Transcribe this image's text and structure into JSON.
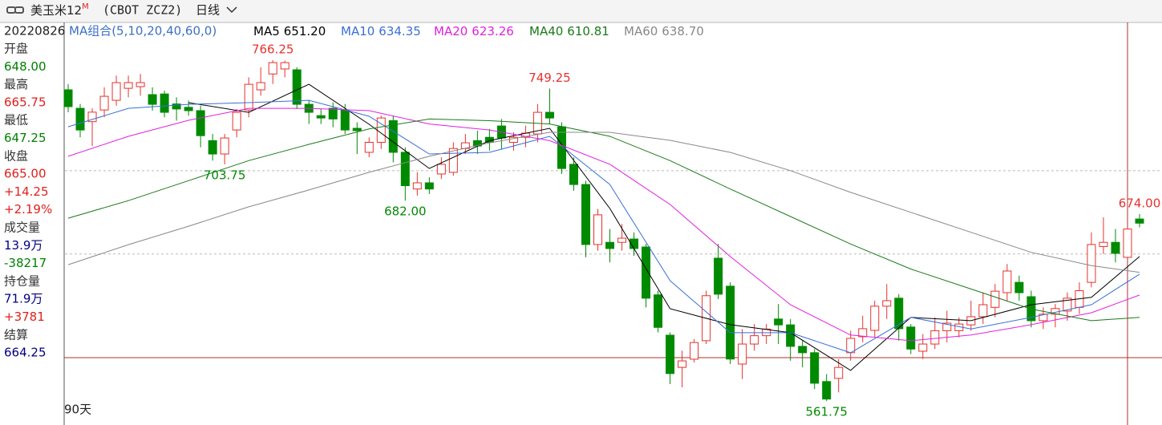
{
  "header": {
    "symbol": "美玉米12",
    "superscript": "M",
    "code": "(CBOT ZCZ2)",
    "period": "日线"
  },
  "info": {
    "date": "20220826",
    "items": [
      {
        "text": "开盘",
        "color": "#333333"
      },
      {
        "text": "648.00",
        "color": "#008000"
      },
      {
        "text": "最高",
        "color": "#333333"
      },
      {
        "text": "665.75",
        "color": "#e0201c"
      },
      {
        "text": "最低",
        "color": "#333333"
      },
      {
        "text": "647.25",
        "color": "#008000"
      },
      {
        "text": "收盘",
        "color": "#333333"
      },
      {
        "text": "665.00",
        "color": "#e0201c"
      },
      {
        "text": "+14.25",
        "color": "#e0201c"
      },
      {
        "text": "+2.19%",
        "color": "#e0201c"
      },
      {
        "text": "成交量",
        "color": "#333333"
      },
      {
        "text": "13.9万",
        "color": "#000080"
      },
      {
        "text": "-38217",
        "color": "#008000"
      },
      {
        "text": "持仓量",
        "color": "#333333"
      },
      {
        "text": "71.9万",
        "color": "#000080"
      },
      {
        "text": "+3781",
        "color": "#e0201c"
      },
      {
        "text": "结算",
        "color": "#333333"
      },
      {
        "text": "664.25",
        "color": "#000080"
      }
    ]
  },
  "chart_data": {
    "type": "candlestick",
    "ma_legend": "MA组合(5,10,20,40,60,0)",
    "span_label": "90天",
    "up_color": "#e5322d",
    "down_color": "#008a00",
    "ylim": [
      548.4,
      788.9
    ],
    "grid_levels": [
      650,
      700
    ],
    "open": [
      748.5,
      737.4,
      729.4,
      736.4,
      742.2,
      749.4,
      750.4,
      745.6,
      746,
      740,
      738,
      736,
      718,
      710,
      724.4,
      736.4,
      748.5,
      758,
      761,
      760.5,
      739.8,
      733,
      737.4,
      736.4,
      725.4,
      711,
      717,
      730,
      711,
      689,
      692.7,
      698,
      699,
      713.3,
      718,
      720,
      726.8,
      717,
      720,
      722,
      735,
      726.3,
      703.8,
      691.7,
      655.7,
      657,
      657,
      659,
      654.2,
      625.5,
      601.3,
      582,
      586.9,
      598,
      647.5,
      630.7,
      584,
      596,
      601,
      611,
      607.5,
      594.6,
      590.8,
      573.5,
      575.4,
      590.8,
      600.4,
      604.2,
      618.7,
      623.5,
      606.2,
      591.7,
      596,
      604,
      604,
      607.5,
      612.4,
      618,
      626.8,
      633,
      624.4,
      610,
      613.9,
      615.8,
      618,
      633,
      654.5,
      657,
      648,
      671
    ],
    "high": [
      751.9,
      740,
      737.4,
      750,
      757,
      757,
      758,
      750,
      748,
      744,
      742,
      739,
      722,
      722,
      737,
      756,
      762,
      766.25,
      766,
      762,
      742,
      737,
      741,
      740,
      729,
      720,
      733,
      733,
      714,
      699,
      696,
      708,
      717,
      722,
      724,
      725,
      731,
      723,
      727,
      740,
      749.25,
      729,
      708,
      694,
      677,
      665,
      668,
      663,
      656,
      628,
      603,
      592,
      599,
      628,
      656,
      633,
      605,
      608,
      608,
      620,
      611,
      598,
      593,
      578,
      587,
      604,
      613,
      622,
      632,
      626,
      608,
      602,
      612,
      616,
      612,
      622,
      627,
      632,
      644,
      637,
      628,
      618,
      620,
      627,
      633,
      663,
      672,
      665,
      665.75,
      674
    ],
    "low": [
      735,
      720,
      714.8,
      732,
      739,
      744,
      745,
      736,
      732,
      730,
      733,
      714,
      706,
      703.75,
      720,
      732,
      745,
      752,
      756,
      737,
      728,
      728,
      726,
      722,
      710,
      708,
      713,
      705,
      682,
      685,
      686,
      695,
      697,
      710,
      710,
      712,
      713,
      712,
      714,
      717,
      728,
      698,
      688,
      648,
      652,
      645,
      652,
      649,
      618,
      603,
      572,
      570,
      585,
      596,
      623,
      584,
      575,
      592,
      596,
      596,
      586,
      582,
      569,
      561.75,
      567,
      586,
      597,
      600,
      611,
      598,
      590,
      587,
      593,
      597,
      600,
      604,
      608,
      612,
      622,
      622,
      606,
      605,
      606,
      610,
      614,
      630,
      650,
      645,
      647.25,
      666
    ],
    "close": [
      738.4,
      724.4,
      735.1,
      744.6,
      752.8,
      752.8,
      752.8,
      739.8,
      735,
      737,
      736,
      721,
      710,
      719.6,
      735,
      751.8,
      752.8,
      764.8,
      764.8,
      739.8,
      735,
      731.6,
      731,
      724.4,
      724,
      717,
      731.6,
      711,
      691,
      692.7,
      689,
      703.8,
      713.3,
      716.7,
      714.8,
      717,
      719.6,
      720,
      722.5,
      735,
      731.6,
      701.3,
      691.7,
      655.7,
      673.5,
      653.3,
      659.5,
      653.3,
      623.5,
      606,
      578.3,
      585.9,
      596.9,
      625,
      625.9,
      587,
      596,
      601,
      605,
      607.5,
      594.6,
      590.8,
      572.5,
      563,
      582,
      599.4,
      605.2,
      618.7,
      622,
      605.2,
      593,
      596,
      604,
      608.5,
      608,
      612.4,
      619.6,
      627.7,
      639.8,
      626.8,
      610,
      613.9,
      617.3,
      623.5,
      628,
      655.7,
      657,
      650.4,
      665,
      668.5
    ],
    "ma_index": [
      0,
      5,
      10,
      15,
      20,
      25,
      30,
      35,
      40,
      45,
      50,
      55,
      60,
      65,
      70,
      75,
      80,
      85,
      89
    ],
    "series": [
      {
        "name": "MA5",
        "value_label": "651.20",
        "color": "#000000",
        "values": [
          null,
          null,
          740.8,
          735,
          751.8,
          727.8,
          701.3,
          718,
          725.4,
          677.3,
          617.2,
          607.6,
          602.8,
          580.2,
          612,
          610,
          619.6,
          624,
          648.5
        ]
      },
      {
        "name": "MA10",
        "value_label": "634.35",
        "color": "#3a6fd8",
        "values": [
          726.3,
          737.4,
          739.8,
          740.8,
          742.2,
          732.6,
          710,
          711,
          720.6,
          691.7,
          634,
          602.8,
          602.8,
          590.8,
          612,
          605,
          612,
          619.6,
          637.9
        ]
      },
      {
        "name": "MA20",
        "value_label": "623.26",
        "color": "#e020e0",
        "values": [
          708.6,
          720.6,
          730.2,
          737.4,
          737.4,
          736,
          728,
          724.4,
          718,
          703.8,
          679.7,
          648.5,
          619.6,
          601.4,
          598,
          601.4,
          607.6,
          614.8,
          625.4
        ]
      },
      {
        "name": "MA40",
        "value_label": "610.81",
        "color": "#1a7a1a",
        "values": [
          671.5,
          682,
          694,
          706,
          715.8,
          725,
          731,
          730,
          728,
          720.6,
          706,
          689,
          672.5,
          656,
          641,
          629,
          617,
          610,
          612
        ]
      },
      {
        "name": "MA60",
        "value_label": "638.70",
        "color": "#888888",
        "values": [
          643.6,
          655.6,
          666.7,
          678.3,
          688.4,
          699,
          708.6,
          716.7,
          723,
          723,
          718.2,
          711,
          700,
          687,
          675,
          663,
          651,
          643,
          639
        ]
      }
    ],
    "annotations": [
      {
        "index": 17,
        "value": 766.25,
        "label": "766.25",
        "side": "high"
      },
      {
        "index": 40,
        "value": 749.25,
        "label": "749.25",
        "side": "high"
      },
      {
        "index": 13,
        "value": 703.75,
        "label": "703.75",
        "side": "low"
      },
      {
        "index": 28,
        "value": 682,
        "label": "682.00",
        "side": "low"
      },
      {
        "index": 63,
        "value": 561.75,
        "label": "561.75",
        "side": "low"
      },
      {
        "index": 89,
        "value": 674,
        "label": "674.00",
        "side": "high"
      }
    ]
  }
}
